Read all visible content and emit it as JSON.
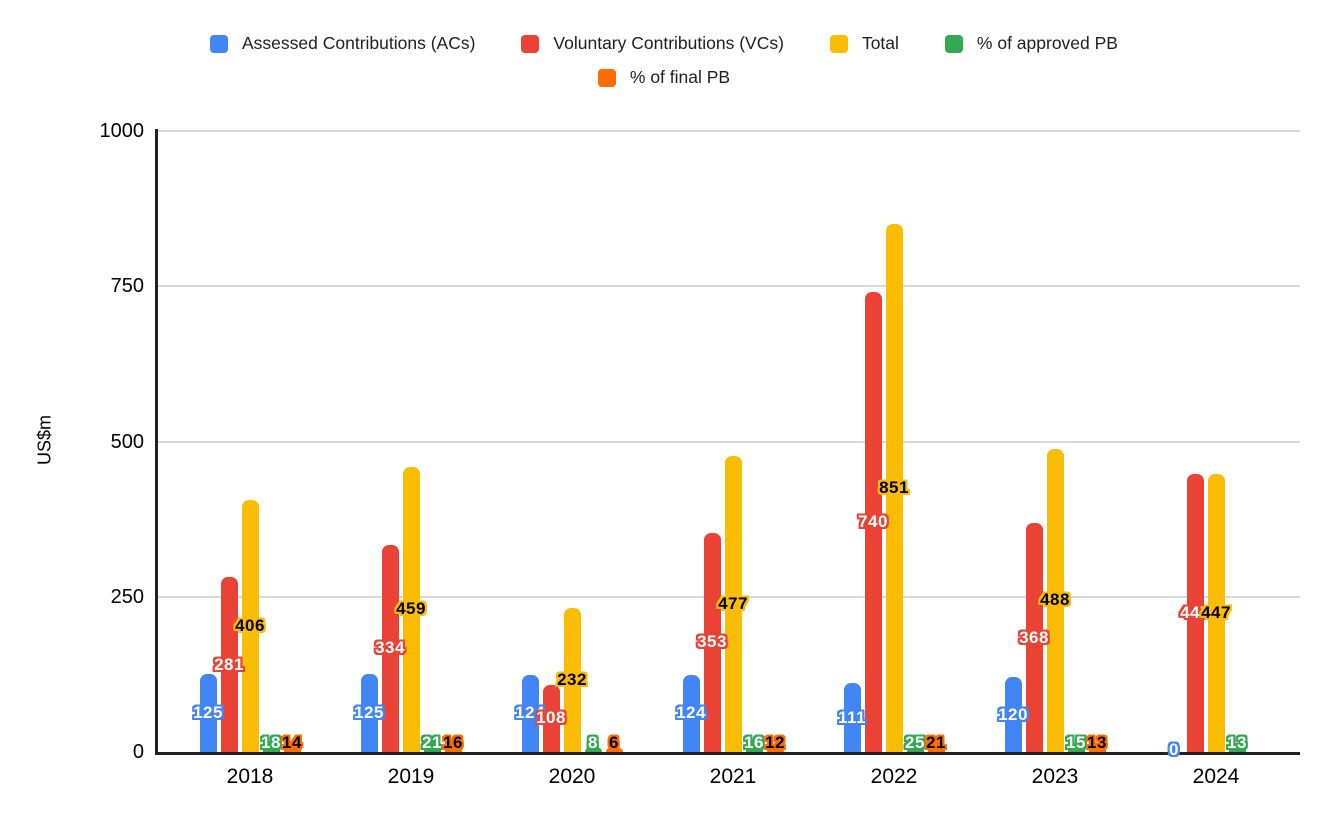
{
  "chart_data": {
    "type": "bar",
    "title": "",
    "ylabel": "US$m",
    "categories": [
      "2018",
      "2019",
      "2020",
      "2021",
      "2022",
      "2023",
      "2024"
    ],
    "series": [
      {
        "name": "Assessed Contributions (ACs)",
        "color": "#4285F4",
        "label_text_color": "#ffffff",
        "values": [
          125,
          125,
          124,
          124,
          111,
          120,
          0
        ]
      },
      {
        "name": "Voluntary Contributions (VCs)",
        "color": "#EA4335",
        "label_text_color": "#ffffff",
        "values": [
          281,
          334,
          108,
          353,
          740,
          368,
          447
        ]
      },
      {
        "name": "Total",
        "color": "#FBBC04",
        "label_text_color": "#000000",
        "values": [
          406,
          459,
          232,
          477,
          851,
          488,
          447
        ]
      },
      {
        "name": "% of approved PB",
        "color": "#34A853",
        "label_text_color": "#ffffff",
        "values": [
          18,
          21,
          8,
          16,
          25,
          15,
          13
        ]
      },
      {
        "name": "% of final PB",
        "color": "#FF6D01",
        "label_text_color": "#000000",
        "values": [
          14,
          16,
          6,
          12,
          21,
          13,
          null
        ]
      }
    ],
    "ylim": [
      0,
      1000
    ],
    "yticks": [
      0,
      250,
      500,
      750,
      1000
    ],
    "grid": true,
    "gridline_color": "#d9d9d9",
    "axis_color": "#212121",
    "legend_position": "top"
  }
}
